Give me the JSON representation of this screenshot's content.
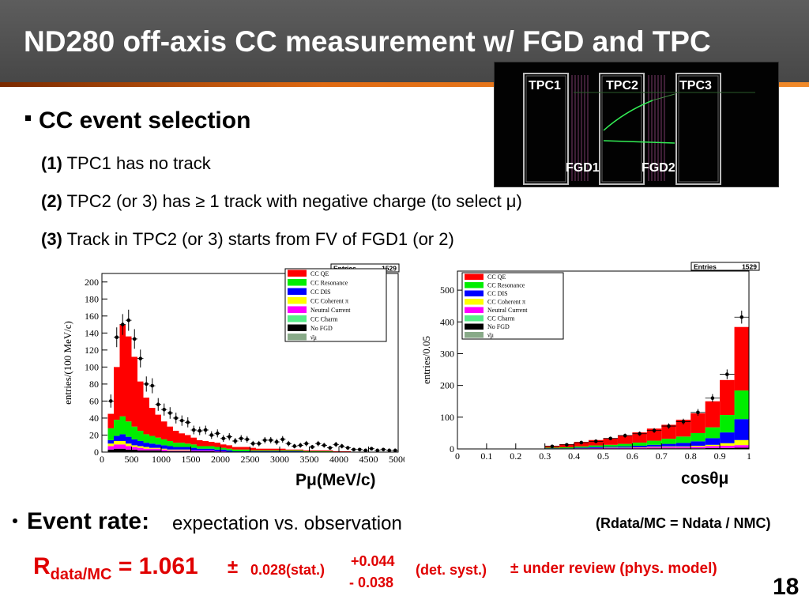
{
  "slide": {
    "title": "ND280 off-axis CC measurement w/ FGD and TPC",
    "page_number": "18"
  },
  "detector": {
    "tpc_labels": [
      "TPC1",
      "TPC2",
      "TPC3"
    ],
    "fgd_labels": [
      "FGD1",
      "FGD2"
    ]
  },
  "selection": {
    "heading": "CC event selection",
    "criteria": [
      {
        "num": "(1)",
        "text": "TPC1 has no track"
      },
      {
        "num": "(2)",
        "text": "TPC2 (or 3) has ≥ 1 track with negative charge (to select μ)"
      },
      {
        "num": "(3)",
        "text": "Track in TPC2 (or 3) starts from FV of FGD1 (or 2)"
      }
    ]
  },
  "captions": {
    "left": "Pμ(MeV/c)",
    "right": "cosθμ"
  },
  "event_rate": {
    "heading": "Event rate:",
    "subtitle": "expectation vs. observation",
    "ratio_definition": "(Rdata/MC = Ndata / NMC)",
    "result": {
      "symbol": "R",
      "subscript": "data/MC",
      "equals": "= 1.061",
      "pm": "±",
      "stat": "0.028(stat.)",
      "syst_up": "+0.044",
      "syst_down": "- 0.038",
      "syst_label": "(det. syst.)",
      "model": "± under review (phys. model)"
    }
  },
  "colors": {
    "ccqe": "#ff0000",
    "resonance": "#00ee00",
    "dis": "#0000ff",
    "coherent": "#ffff00",
    "neutral_current": "#ff00ff",
    "charm": "#55ee88",
    "no_fgd": "#000000",
    "nubar": "#88aa88",
    "result_red": "#e00000"
  },
  "chart_data": [
    {
      "type": "bar",
      "stacked": true,
      "xlabel": "Pμ(MeV/c)",
      "ylabel": "entries/(100 MeV/c)",
      "xlim": [
        0,
        5000
      ],
      "ylim": [
        0,
        210
      ],
      "xticks": [
        0,
        500,
        1000,
        1500,
        2000,
        2500,
        3000,
        3500,
        4000,
        4500,
        5000
      ],
      "yticks": [
        0,
        20,
        40,
        60,
        80,
        100,
        120,
        140,
        160,
        180,
        200
      ],
      "stats_box": {
        "label": "Entries",
        "value": "1529"
      },
      "legend": [
        "CC QE",
        "CC Resonance",
        "CC DIS",
        "CC Coherent π",
        "Neutral Current",
        "CC Charm",
        "No FGD",
        "ν̄μ"
      ],
      "bin_width": 100,
      "x": [
        150,
        250,
        350,
        450,
        550,
        650,
        750,
        850,
        950,
        1050,
        1150,
        1250,
        1350,
        1450,
        1550,
        1650,
        1750,
        1850,
        1950,
        2050,
        2150,
        2250,
        2350,
        2450,
        2550,
        2650,
        2750,
        2850,
        2950,
        3050,
        3150,
        3250,
        3350,
        3450,
        3550,
        3650,
        3750,
        3850,
        3950,
        4050,
        4150,
        4250,
        4350,
        4450,
        4550,
        4650,
        4750,
        4850,
        4950
      ],
      "series": [
        {
          "name": "No FGD",
          "values": [
            3,
            4,
            4,
            3,
            3,
            2,
            2,
            2,
            2,
            1,
            1,
            1,
            1,
            1,
            1,
            1,
            1,
            1,
            0,
            0,
            0,
            0,
            0,
            0,
            0,
            0,
            0,
            0,
            0,
            0,
            0,
            0,
            0,
            0,
            0,
            0,
            0,
            0,
            0,
            0,
            0,
            0,
            0,
            0,
            0,
            0,
            0,
            0,
            0
          ]
        },
        {
          "name": "Neutral Current",
          "values": [
            4,
            5,
            5,
            4,
            3,
            3,
            2,
            2,
            2,
            2,
            1,
            1,
            1,
            1,
            1,
            1,
            1,
            1,
            1,
            1,
            0,
            0,
            0,
            0,
            0,
            0,
            0,
            0,
            0,
            0,
            0,
            0,
            0,
            0,
            0,
            0,
            0,
            0,
            0,
            0,
            0,
            0,
            0,
            0,
            0,
            0,
            0,
            0,
            0
          ]
        },
        {
          "name": "CC Coherent π",
          "values": [
            3,
            4,
            4,
            3,
            2,
            2,
            2,
            1,
            1,
            1,
            1,
            1,
            1,
            1,
            0,
            0,
            0,
            0,
            0,
            0,
            0,
            0,
            0,
            0,
            0,
            0,
            0,
            0,
            0,
            0,
            0,
            0,
            0,
            0,
            0,
            0,
            0,
            0,
            0,
            0,
            0,
            0,
            0,
            0,
            0,
            0,
            0,
            0,
            0
          ]
        },
        {
          "name": "CC DIS",
          "values": [
            4,
            6,
            8,
            8,
            7,
            6,
            5,
            5,
            4,
            4,
            4,
            3,
            3,
            3,
            3,
            2,
            2,
            2,
            2,
            2,
            2,
            1,
            1,
            1,
            1,
            1,
            1,
            1,
            1,
            1,
            1,
            1,
            1,
            0,
            0,
            0,
            0,
            0,
            0,
            0,
            0,
            0,
            0,
            0,
            0,
            0,
            0,
            0,
            0
          ]
        },
        {
          "name": "CC Resonance",
          "values": [
            14,
            19,
            21,
            18,
            15,
            12,
            10,
            9,
            8,
            7,
            6,
            5,
            5,
            4,
            4,
            3,
            3,
            3,
            3,
            2,
            2,
            2,
            2,
            2,
            1,
            1,
            1,
            1,
            1,
            1,
            1,
            1,
            1,
            1,
            1,
            1,
            1,
            1,
            0,
            0,
            0,
            0,
            0,
            0,
            0,
            0,
            0,
            0,
            0
          ]
        },
        {
          "name": "CC QE",
          "values": [
            17,
            62,
            108,
            100,
            82,
            58,
            43,
            33,
            27,
            21,
            17,
            14,
            11,
            10,
            8,
            7,
            6,
            5,
            5,
            4,
            4,
            3,
            3,
            3,
            3,
            2,
            2,
            2,
            2,
            2,
            1,
            1,
            1,
            1,
            1,
            1,
            1,
            1,
            1,
            1,
            1,
            0,
            0,
            0,
            0,
            0,
            0,
            0,
            0
          ]
        }
      ],
      "observed": [
        60,
        135,
        150,
        155,
        133,
        110,
        80,
        78,
        56,
        50,
        46,
        40,
        37,
        35,
        26,
        25,
        26,
        20,
        22,
        16,
        18,
        13,
        16,
        15,
        10,
        10,
        14,
        14,
        12,
        15,
        10,
        7,
        8,
        10,
        6,
        10,
        8,
        5,
        9,
        7,
        5,
        3,
        3,
        2,
        4,
        2,
        3,
        2,
        2
      ]
    },
    {
      "type": "bar",
      "stacked": true,
      "xlabel": "cosθμ",
      "ylabel": "entries/0.05",
      "xlim": [
        0,
        1
      ],
      "ylim": [
        0,
        560
      ],
      "xticks": [
        0,
        0.1,
        0.2,
        0.3,
        0.4,
        0.5,
        0.6,
        0.7,
        0.8,
        0.9,
        1
      ],
      "yticks": [
        0,
        100,
        200,
        300,
        400,
        500
      ],
      "stats_box": {
        "label": "Entries",
        "value": "1529"
      },
      "legend": [
        "CC QE",
        "CC Resonance",
        "CC DIS",
        "CC Coherent π",
        "Neutral Current",
        "CC Charm",
        "No FGD",
        "ν̄μ"
      ],
      "bin_width": 0.05,
      "x": [
        0.325,
        0.375,
        0.425,
        0.475,
        0.525,
        0.575,
        0.625,
        0.675,
        0.725,
        0.775,
        0.825,
        0.875,
        0.925,
        0.975
      ],
      "series": [
        {
          "name": "No FGD",
          "values": [
            0,
            0,
            1,
            1,
            1,
            1,
            1,
            2,
            2,
            2,
            2,
            3,
            3,
            4
          ]
        },
        {
          "name": "Neutral Current",
          "values": [
            1,
            1,
            1,
            2,
            2,
            2,
            3,
            3,
            4,
            4,
            5,
            6,
            7,
            8
          ]
        },
        {
          "name": "CC Coherent π",
          "values": [
            0,
            0,
            0,
            0,
            1,
            1,
            1,
            2,
            2,
            2,
            3,
            4,
            8,
            16
          ]
        },
        {
          "name": "CC DIS",
          "values": [
            1,
            1,
            2,
            3,
            3,
            4,
            5,
            6,
            8,
            11,
            14,
            21,
            34,
            66
          ]
        },
        {
          "name": "CC Resonance",
          "values": [
            2,
            3,
            4,
            5,
            6,
            8,
            10,
            13,
            16,
            20,
            26,
            34,
            55,
            90
          ]
        },
        {
          "name": "CC QE",
          "values": [
            6,
            10,
            14,
            17,
            21,
            27,
            32,
            38,
            44,
            53,
            62,
            82,
            110,
            200
          ]
        }
      ],
      "observed": [
        8,
        13,
        20,
        24,
        33,
        42,
        48,
        58,
        72,
        86,
        115,
        160,
        235,
        415
      ]
    }
  ]
}
